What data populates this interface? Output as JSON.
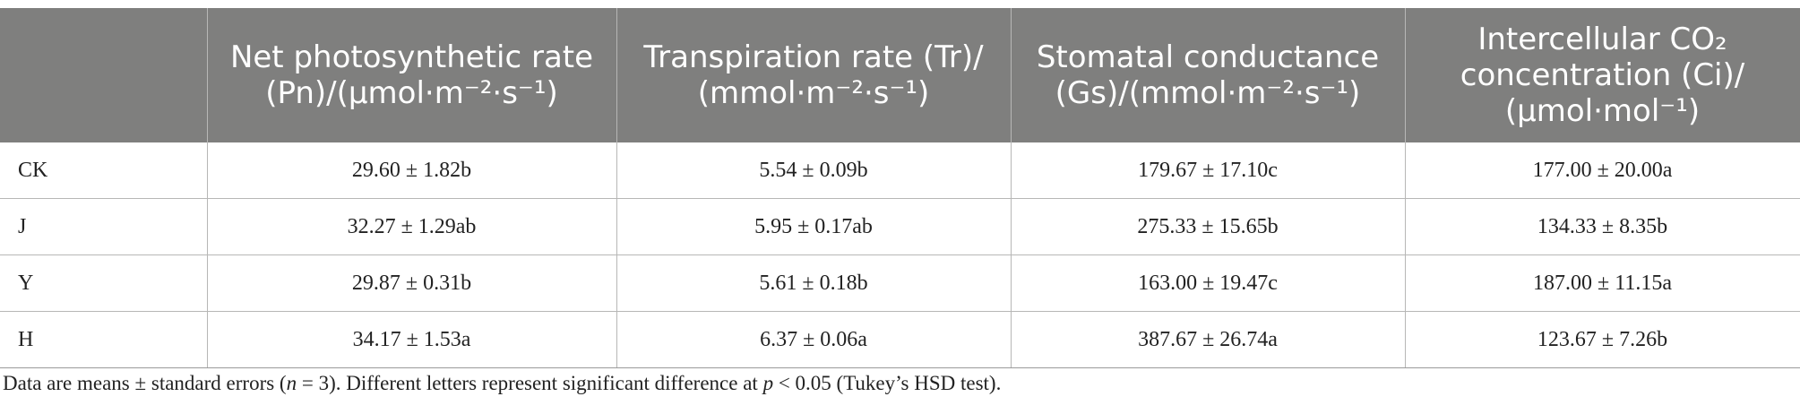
{
  "table": {
    "headers": [
      {
        "line1": "",
        "line2": "",
        "line3": ""
      },
      {
        "line1": "Net photosynthetic rate",
        "line2": "(Pn)/(μmol·m⁻²·s⁻¹)",
        "line3": ""
      },
      {
        "line1": "Transpiration rate (Tr)/",
        "line2": "(mmol·m⁻²·s⁻¹)",
        "line3": ""
      },
      {
        "line1": "Stomatal conductance",
        "line2": "(Gs)/(mmol·m⁻²·s⁻¹)",
        "line3": ""
      },
      {
        "line1": "Intercellular CO₂",
        "line2": "concentration (Ci)/",
        "line3": "(μmol·mol⁻¹)"
      }
    ],
    "rows": [
      [
        "CK",
        "29.60 ± 1.82b",
        "5.54 ± 0.09b",
        "179.67 ± 17.10c",
        "177.00 ± 20.00a"
      ],
      [
        "J",
        "32.27 ± 1.29ab",
        "5.95 ± 0.17ab",
        "275.33 ± 15.65b",
        "134.33 ± 8.35b"
      ],
      [
        "Y",
        "29.87 ± 0.31b",
        "5.61 ± 0.18b",
        "163.00 ± 19.47c",
        "187.00 ± 11.15a"
      ],
      [
        "H",
        "34.17 ± 1.53a",
        "6.37 ± 0.06a",
        "387.67 ± 26.74a",
        "123.67 ± 7.26b"
      ]
    ]
  },
  "footnote": {
    "part1": "Data are means ± standard errors (",
    "n_var": "n",
    "part2": " = 3). Different letters represent significant difference at ",
    "p_var": "p",
    "part3": " < 0.05 (Tukey’s HSD test)."
  }
}
